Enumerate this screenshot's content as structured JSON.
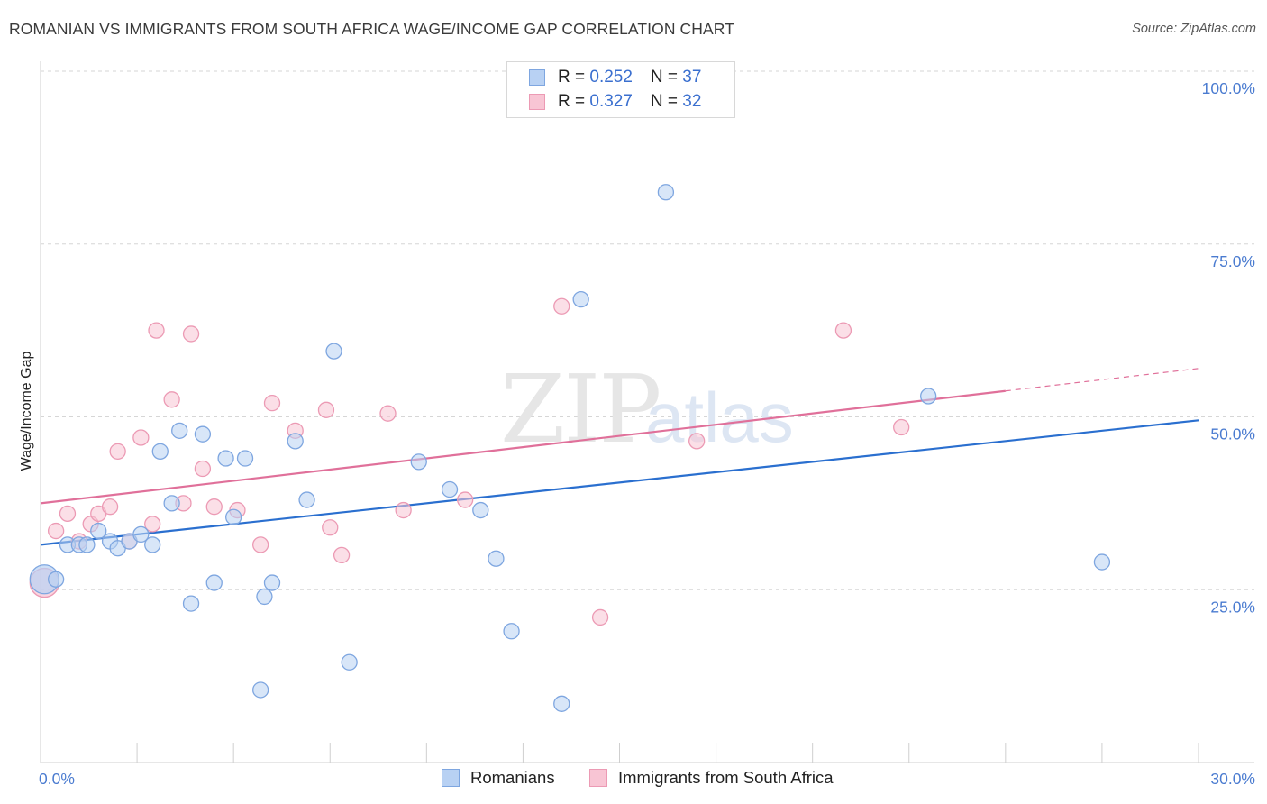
{
  "header": {
    "title": "ROMANIAN VS IMMIGRANTS FROM SOUTH AFRICA WAGE/INCOME GAP CORRELATION CHART",
    "source": "Source: ZipAtlas.com"
  },
  "watermark": {
    "part1": "ZIP",
    "part2": "atlas"
  },
  "legend_top": {
    "rows": [
      {
        "r_label": "R = ",
        "r_value": "0.252",
        "n_label": "N = ",
        "n_value": "37"
      },
      {
        "r_label": "R = ",
        "r_value": "0.327",
        "n_label": "N = ",
        "n_value": "32"
      }
    ]
  },
  "legend_bottom": {
    "items": [
      {
        "label": "Romanians"
      },
      {
        "label": "Immigrants from South Africa"
      }
    ]
  },
  "colors": {
    "blue_fill": "#b8d1f3",
    "blue_stroke": "#7ea6e0",
    "blue_line": "#2a6fcf",
    "pink_fill": "#f8c5d4",
    "pink_stroke": "#ec9ab4",
    "pink_line": "#e0709a",
    "tick_text": "#4a7bd0",
    "grid": "#d6d6d6"
  },
  "chart_data": {
    "type": "scatter",
    "title": "ROMANIAN VS IMMIGRANTS FROM SOUTH AFRICA WAGE/INCOME GAP CORRELATION CHART",
    "xlabel": "",
    "ylabel": "Wage/Income Gap",
    "xlim": [
      0,
      30
    ],
    "ylim": [
      0,
      100
    ],
    "x_tick_labels": [
      "0.0%",
      "30.0%"
    ],
    "y_ticks": [
      25,
      50,
      75,
      100
    ],
    "y_tick_labels": [
      "25.0%",
      "50.0%",
      "75.0%",
      "100.0%"
    ],
    "grid": true,
    "series": [
      {
        "name": "Romanians",
        "color": "#b8d1f3",
        "points": [
          {
            "x": 0.1,
            "y": 26.5,
            "big": true
          },
          {
            "x": 0.4,
            "y": 26.5
          },
          {
            "x": 0.7,
            "y": 31.5
          },
          {
            "x": 1.0,
            "y": 31.5
          },
          {
            "x": 1.2,
            "y": 31.5
          },
          {
            "x": 1.5,
            "y": 33.5
          },
          {
            "x": 1.8,
            "y": 32.0
          },
          {
            "x": 2.0,
            "y": 31.0
          },
          {
            "x": 2.3,
            "y": 32.0
          },
          {
            "x": 2.6,
            "y": 33.0
          },
          {
            "x": 2.9,
            "y": 31.5
          },
          {
            "x": 3.1,
            "y": 45.0
          },
          {
            "x": 3.4,
            "y": 37.5
          },
          {
            "x": 3.6,
            "y": 48.0
          },
          {
            "x": 3.9,
            "y": 23.0
          },
          {
            "x": 4.2,
            "y": 47.5
          },
          {
            "x": 4.5,
            "y": 26.0
          },
          {
            "x": 4.8,
            "y": 44.0
          },
          {
            "x": 5.0,
            "y": 35.5
          },
          {
            "x": 5.3,
            "y": 44.0
          },
          {
            "x": 5.7,
            "y": 10.5
          },
          {
            "x": 5.8,
            "y": 24.0
          },
          {
            "x": 6.0,
            "y": 26.0
          },
          {
            "x": 6.6,
            "y": 46.5
          },
          {
            "x": 6.9,
            "y": 38.0
          },
          {
            "x": 7.6,
            "y": 59.5
          },
          {
            "x": 8.0,
            "y": 14.5
          },
          {
            "x": 9.8,
            "y": 43.5
          },
          {
            "x": 10.6,
            "y": 39.5
          },
          {
            "x": 11.4,
            "y": 36.5
          },
          {
            "x": 11.8,
            "y": 29.5
          },
          {
            "x": 12.2,
            "y": 19.0
          },
          {
            "x": 13.5,
            "y": 8.5
          },
          {
            "x": 14.0,
            "y": 67.0
          },
          {
            "x": 16.2,
            "y": 82.5
          },
          {
            "x": 23.0,
            "y": 53.0
          },
          {
            "x": 27.5,
            "y": 29.0
          }
        ],
        "trend": {
          "x0": 0,
          "y0": 31.5,
          "x1": 30,
          "y1": 49.5,
          "solid_until": 30
        }
      },
      {
        "name": "Immigrants from South Africa",
        "color": "#f8c5d4",
        "points": [
          {
            "x": 0.1,
            "y": 26.0,
            "big": true
          },
          {
            "x": 0.4,
            "y": 33.5
          },
          {
            "x": 0.7,
            "y": 36.0
          },
          {
            "x": 1.0,
            "y": 32.0
          },
          {
            "x": 1.3,
            "y": 34.5
          },
          {
            "x": 1.5,
            "y": 36.0
          },
          {
            "x": 1.8,
            "y": 37.0
          },
          {
            "x": 2.0,
            "y": 45.0
          },
          {
            "x": 2.3,
            "y": 32.0
          },
          {
            "x": 2.6,
            "y": 47.0
          },
          {
            "x": 2.9,
            "y": 34.5
          },
          {
            "x": 3.0,
            "y": 62.5
          },
          {
            "x": 3.4,
            "y": 52.5
          },
          {
            "x": 3.7,
            "y": 37.5
          },
          {
            "x": 3.9,
            "y": 62.0
          },
          {
            "x": 4.2,
            "y": 42.5
          },
          {
            "x": 4.5,
            "y": 37.0
          },
          {
            "x": 5.1,
            "y": 36.5
          },
          {
            "x": 5.7,
            "y": 31.5
          },
          {
            "x": 6.0,
            "y": 52.0
          },
          {
            "x": 6.6,
            "y": 48.0
          },
          {
            "x": 7.4,
            "y": 51.0
          },
          {
            "x": 7.5,
            "y": 34.0
          },
          {
            "x": 7.8,
            "y": 30.0
          },
          {
            "x": 9.0,
            "y": 50.5
          },
          {
            "x": 9.4,
            "y": 36.5
          },
          {
            "x": 11.0,
            "y": 38.0
          },
          {
            "x": 13.5,
            "y": 66.0
          },
          {
            "x": 14.5,
            "y": 21.0
          },
          {
            "x": 17.0,
            "y": 46.5
          },
          {
            "x": 20.8,
            "y": 62.5
          },
          {
            "x": 22.3,
            "y": 48.5
          }
        ],
        "trend": {
          "x0": 0,
          "y0": 37.5,
          "x1": 30,
          "y1": 57.0,
          "solid_until": 25.0
        }
      }
    ]
  }
}
